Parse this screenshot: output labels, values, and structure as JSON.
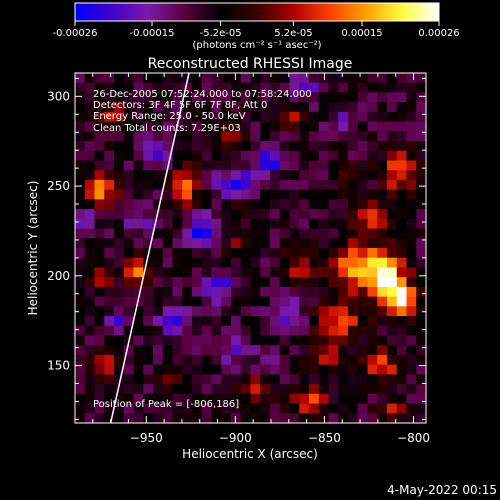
{
  "figure": {
    "title": "Reconstructed RHESSI Image",
    "footer_date": "4-May-2022 00:15",
    "overlay_lines": [
      "26-Dec-2005 07:52:24.000 to 07:58:24.000",
      "Detectors: 3F 4F 5F 6F 7F 8F, Att 0",
      "Energy Range: 25.0 - 50.0 keV",
      "Clean    Total counts: 7.29E+03"
    ],
    "peak_label": "Position of Peak = [-806,186]"
  },
  "colorbar": {
    "ticks": [
      "-0.00026",
      "-0.00015",
      "-5.2e-05",
      "5.2e-05",
      "0.00015",
      "0.00026"
    ],
    "unit_label": "(photons cm⁻² s⁻¹ asec⁻²)",
    "colors": [
      "#0000ff",
      "#4400cc",
      "#7a1aa8",
      "#5a0040",
      "#000000",
      "#3a0000",
      "#b00000",
      "#ff4000",
      "#ffa000",
      "#ffff40",
      "#ffffff"
    ]
  },
  "chart_data": {
    "type": "heatmap",
    "title": "Reconstructed RHESSI Image",
    "xlabel": "Heliocentric X (arcsec)",
    "ylabel": "Heliocentric Y (arcsec)",
    "xlim": [
      -990,
      -793
    ],
    "ylim": [
      118,
      313
    ],
    "x_ticks": [
      -950,
      -900,
      -850,
      -800
    ],
    "y_ticks": [
      150,
      200,
      250,
      300
    ],
    "x_tick_labels": [
      "−950",
      "−900",
      "−850",
      "−800"
    ],
    "y_tick_labels": [
      "150",
      "200",
      "250",
      "300"
    ],
    "colorbar_range": [
      -0.00026,
      0.00026
    ],
    "peak_position": [
      -806,
      186
    ],
    "limb_line": [
      [
        -970,
        118
      ],
      [
        -926,
        313
      ]
    ],
    "sources": [
      {
        "x": -833,
        "y": 205,
        "amp": 0.00022,
        "sx": 12,
        "sy": 9
      },
      {
        "x": -815,
        "y": 198,
        "amp": 0.00026,
        "sx": 8,
        "sy": 10
      },
      {
        "x": -806,
        "y": 186,
        "amp": 0.00026,
        "sx": 6,
        "sy": 6
      },
      {
        "x": -842,
        "y": 175,
        "amp": 0.00018,
        "sx": 9,
        "sy": 8
      },
      {
        "x": -825,
        "y": 232,
        "amp": 0.00016,
        "sx": 7,
        "sy": 6
      },
      {
        "x": -865,
        "y": 205,
        "amp": 0.00013,
        "sx": 6,
        "sy": 6
      },
      {
        "x": -808,
        "y": 258,
        "amp": 0.0002,
        "sx": 7,
        "sy": 8
      },
      {
        "x": -818,
        "y": 150,
        "amp": 0.00017,
        "sx": 7,
        "sy": 6
      },
      {
        "x": -850,
        "y": 155,
        "amp": 0.00013,
        "sx": 6,
        "sy": 5
      },
      {
        "x": -858,
        "y": 130,
        "amp": 0.00018,
        "sx": 7,
        "sy": 5
      },
      {
        "x": -812,
        "y": 125,
        "amp": 0.00013,
        "sx": 6,
        "sy": 4
      },
      {
        "x": -888,
        "y": 137,
        "amp": 0.00016,
        "sx": 6,
        "sy": 5
      },
      {
        "x": -928,
        "y": 250,
        "amp": 0.0002,
        "sx": 5,
        "sy": 8
      },
      {
        "x": -975,
        "y": 248,
        "amp": 0.00022,
        "sx": 6,
        "sy": 6
      },
      {
        "x": -955,
        "y": 203,
        "amp": 0.00019,
        "sx": 5,
        "sy": 6
      },
      {
        "x": -975,
        "y": 200,
        "amp": 0.00012,
        "sx": 5,
        "sy": 5
      },
      {
        "x": -973,
        "y": 150,
        "amp": 0.00016,
        "sx": 5,
        "sy": 5
      },
      {
        "x": -905,
        "y": 278,
        "amp": 0.00014,
        "sx": 5,
        "sy": 5
      },
      {
        "x": -870,
        "y": 290,
        "amp": 0.00012,
        "sx": 5,
        "sy": 5
      },
      {
        "x": -968,
        "y": 290,
        "amp": 0.00012,
        "sx": 6,
        "sy": 5
      },
      {
        "x": -898,
        "y": 240,
        "amp": 0.00013,
        "sx": 5,
        "sy": 5
      },
      {
        "x": -898,
        "y": 218,
        "amp": 0.0001,
        "sx": 5,
        "sy": 5
      },
      {
        "x": -935,
        "y": 145,
        "amp": 0.00011,
        "sx": 5,
        "sy": 5
      },
      {
        "x": -835,
        "y": 255,
        "amp": 0.0001,
        "sx": 6,
        "sy": 5
      },
      {
        "x": -900,
        "y": 250,
        "amp": -0.0002,
        "sx": 7,
        "sy": 6
      },
      {
        "x": -920,
        "y": 225,
        "amp": -0.00018,
        "sx": 6,
        "sy": 6
      },
      {
        "x": -945,
        "y": 270,
        "amp": -0.00016,
        "sx": 6,
        "sy": 6
      },
      {
        "x": -880,
        "y": 265,
        "amp": -0.00016,
        "sx": 6,
        "sy": 6
      },
      {
        "x": -870,
        "y": 180,
        "amp": -0.00014,
        "sx": 6,
        "sy": 6
      },
      {
        "x": -910,
        "y": 195,
        "amp": -0.00014,
        "sx": 6,
        "sy": 6
      },
      {
        "x": -900,
        "y": 160,
        "amp": -0.00013,
        "sx": 6,
        "sy": 6
      },
      {
        "x": -955,
        "y": 230,
        "amp": -0.00012,
        "sx": 5,
        "sy": 5
      },
      {
        "x": -985,
        "y": 230,
        "amp": -0.00012,
        "sx": 5,
        "sy": 5
      },
      {
        "x": -935,
        "y": 175,
        "amp": -0.00012,
        "sx": 6,
        "sy": 6
      },
      {
        "x": -860,
        "y": 305,
        "amp": -0.00012,
        "sx": 6,
        "sy": 5
      },
      {
        "x": -880,
        "y": 150,
        "amp": -0.0001,
        "sx": 5,
        "sy": 5
      },
      {
        "x": -965,
        "y": 175,
        "amp": -0.0001,
        "sx": 5,
        "sy": 5
      },
      {
        "x": -840,
        "y": 285,
        "amp": -0.0001,
        "sx": 5,
        "sy": 5
      }
    ]
  }
}
